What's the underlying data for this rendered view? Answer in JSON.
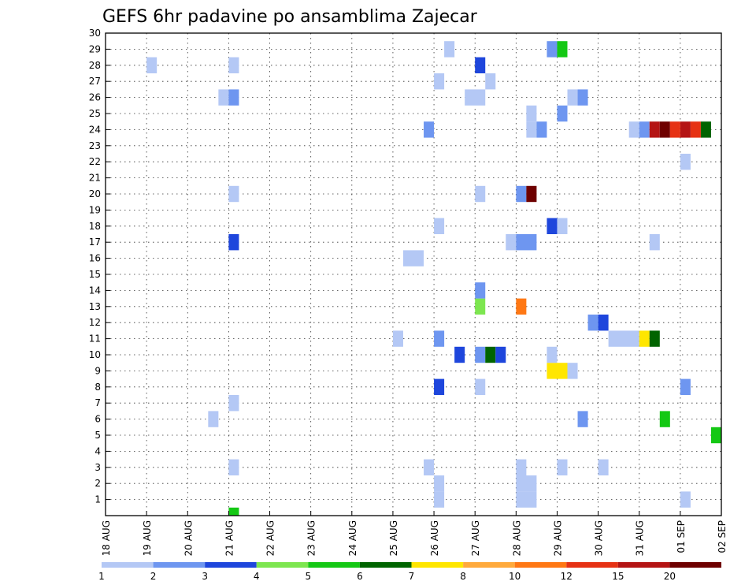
{
  "chart_data": {
    "type": "heatmap",
    "title": "GEFS 6hr padavine po ansamblima Zajecar",
    "xlabel": "",
    "ylabel": "",
    "x_ticks": [
      "18 AUG",
      "19 AUG",
      "20 AUG",
      "21 AUG",
      "22 AUG",
      "23 AUG",
      "24 AUG",
      "25 AUG",
      "26 AUG",
      "27 AUG",
      "28 AUG",
      "29 AUG",
      "30 AUG",
      "31 AUG",
      "01 SEP",
      "02 SEP"
    ],
    "x_range_days": [
      0,
      15
    ],
    "y_ticks": [
      1,
      2,
      3,
      4,
      5,
      6,
      7,
      8,
      9,
      10,
      11,
      12,
      13,
      14,
      15,
      16,
      17,
      18,
      19,
      20,
      21,
      22,
      23,
      24,
      25,
      26,
      27,
      28,
      29,
      30
    ],
    "y_range": [
      0,
      30
    ],
    "grid": true,
    "legend_placement": "bottom",
    "legend": {
      "breaks": [
        "1",
        "2",
        "3",
        "4",
        "5",
        "6",
        "7",
        "8",
        "10",
        "12",
        "15",
        "20"
      ],
      "colors": [
        "#b4c8f5",
        "#6e96f0",
        "#1e46dc",
        "#7de650",
        "#14c814",
        "#006400",
        "#ffe600",
        "#ffaa3c",
        "#ff7814",
        "#e63214",
        "#b41414",
        "#6e0000"
      ]
    },
    "cells_note": "cells: [day offset from 18 AUG 00Z, ensemble member, precipitation color class 0-11, width in 6h steps]",
    "cells": [
      [
        3.0,
        0,
        4,
        1
      ],
      [
        8.0,
        1,
        0,
        1
      ],
      [
        10.0,
        1,
        0,
        2
      ],
      [
        14.0,
        1,
        0,
        1
      ],
      [
        8.0,
        2,
        0,
        1
      ],
      [
        10.0,
        2,
        0,
        2
      ],
      [
        3.0,
        3,
        0,
        1
      ],
      [
        7.75,
        3,
        0,
        1
      ],
      [
        10.0,
        3,
        0,
        1
      ],
      [
        11.0,
        3,
        0,
        1
      ],
      [
        12.0,
        3,
        0,
        1
      ],
      [
        14.75,
        5,
        4,
        1
      ],
      [
        2.5,
        6,
        0,
        1
      ],
      [
        11.5,
        6,
        1,
        1
      ],
      [
        13.5,
        6,
        4,
        1
      ],
      [
        3.0,
        7,
        0,
        1
      ],
      [
        8.0,
        8,
        2,
        1
      ],
      [
        9.0,
        8,
        0,
        1
      ],
      [
        14.0,
        8,
        1,
        1
      ],
      [
        10.75,
        9,
        6,
        2
      ],
      [
        11.25,
        9,
        0,
        1
      ],
      [
        8.5,
        10,
        2,
        1
      ],
      [
        9.0,
        10,
        1,
        1
      ],
      [
        9.25,
        10,
        5,
        1
      ],
      [
        9.5,
        10,
        2,
        1
      ],
      [
        10.75,
        10,
        0,
        1
      ],
      [
        7.0,
        11,
        0,
        1
      ],
      [
        8.0,
        11,
        1,
        1
      ],
      [
        12.25,
        11,
        0,
        3
      ],
      [
        13.0,
        11,
        6,
        1
      ],
      [
        13.25,
        11,
        5,
        1
      ],
      [
        11.75,
        12,
        1,
        1
      ],
      [
        12.0,
        12,
        2,
        1
      ],
      [
        9.0,
        13,
        3,
        1
      ],
      [
        10.0,
        13,
        8,
        1
      ],
      [
        9.0,
        14,
        1,
        1
      ],
      [
        7.25,
        16,
        0,
        2
      ],
      [
        3.0,
        17,
        2,
        1
      ],
      [
        9.75,
        17,
        0,
        1
      ],
      [
        10.0,
        17,
        1,
        2
      ],
      [
        13.25,
        17,
        0,
        1
      ],
      [
        8.0,
        18,
        0,
        1
      ],
      [
        10.75,
        18,
        2,
        1
      ],
      [
        11.0,
        18,
        0,
        1
      ],
      [
        3.0,
        20,
        0,
        1
      ],
      [
        9.0,
        20,
        0,
        1
      ],
      [
        10.0,
        20,
        1,
        1
      ],
      [
        10.25,
        20,
        11,
        1
      ],
      [
        14.0,
        22,
        0,
        1
      ],
      [
        7.75,
        24,
        1,
        1
      ],
      [
        10.25,
        24,
        0,
        1
      ],
      [
        10.5,
        24,
        1,
        1
      ],
      [
        12.75,
        24,
        0,
        1
      ],
      [
        13.0,
        24,
        1,
        1
      ],
      [
        13.25,
        24,
        10,
        1
      ],
      [
        13.5,
        24,
        11,
        1
      ],
      [
        13.75,
        24,
        9,
        1
      ],
      [
        14.0,
        24,
        10,
        1
      ],
      [
        14.25,
        24,
        9,
        1
      ],
      [
        14.5,
        24,
        5,
        1
      ],
      [
        10.25,
        25,
        0,
        1
      ],
      [
        11.0,
        25,
        1,
        1
      ],
      [
        2.75,
        26,
        0,
        1
      ],
      [
        3.0,
        26,
        1,
        1
      ],
      [
        8.75,
        26,
        0,
        2
      ],
      [
        11.25,
        26,
        0,
        1
      ],
      [
        11.5,
        26,
        1,
        1
      ],
      [
        8.0,
        27,
        0,
        1
      ],
      [
        9.25,
        27,
        0,
        1
      ],
      [
        15.0,
        27,
        0,
        1
      ],
      [
        1.0,
        28,
        0,
        1
      ],
      [
        3.0,
        28,
        0,
        1
      ],
      [
        9.0,
        28,
        2,
        1
      ],
      [
        8.25,
        29,
        0,
        1
      ],
      [
        10.75,
        29,
        1,
        1
      ],
      [
        11.0,
        29,
        4,
        1
      ]
    ]
  }
}
